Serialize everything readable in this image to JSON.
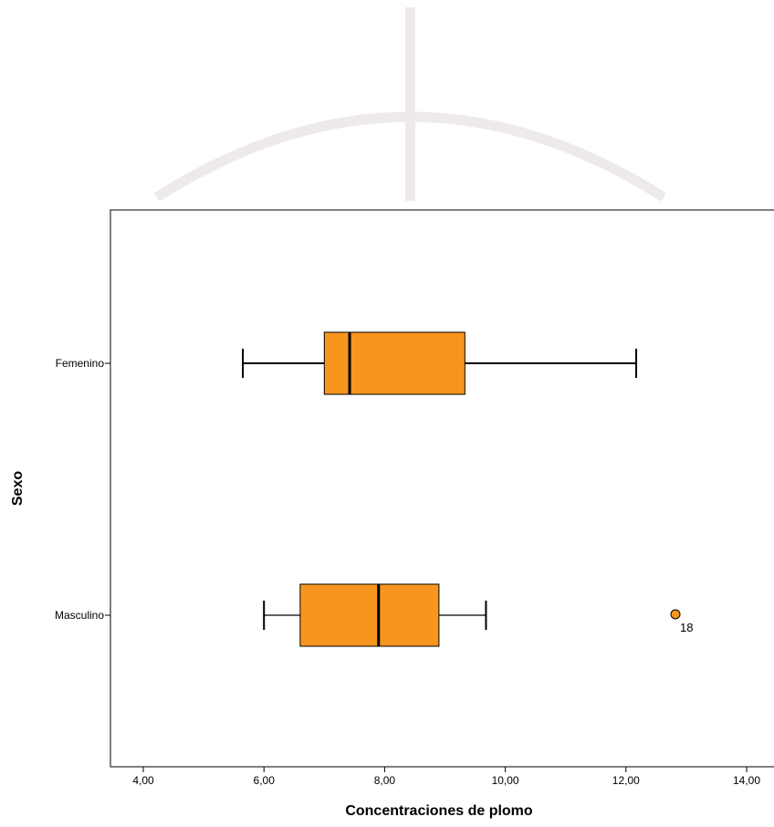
{
  "chart_data": {
    "type": "boxplot",
    "orientation": "horizontal",
    "xlabel": "Concentraciones de plomo",
    "ylabel": "Sexo",
    "xlim": [
      3.5,
      14.5
    ],
    "x_ticks": [
      {
        "value": 4,
        "label": "4,00"
      },
      {
        "value": 6,
        "label": "6,00"
      },
      {
        "value": 8,
        "label": "8,00"
      },
      {
        "value": 10,
        "label": "10,00"
      },
      {
        "value": 12,
        "label": "12,00"
      },
      {
        "value": 14,
        "label": "14,00"
      }
    ],
    "grid": false,
    "box_color": "#F7961F",
    "categories": [
      "Femenino",
      "Masculino"
    ],
    "series": [
      {
        "category": "Femenino",
        "whisker_low": 5.65,
        "q1": 7.0,
        "median": 7.42,
        "q3": 9.33,
        "whisker_high": 12.17,
        "outliers": []
      },
      {
        "category": "Masculino",
        "whisker_low": 6.0,
        "q1": 6.6,
        "median": 7.9,
        "q3": 8.9,
        "whisker_high": 9.68,
        "outliers": [
          {
            "value": 12.82,
            "label": "18"
          }
        ]
      }
    ]
  }
}
